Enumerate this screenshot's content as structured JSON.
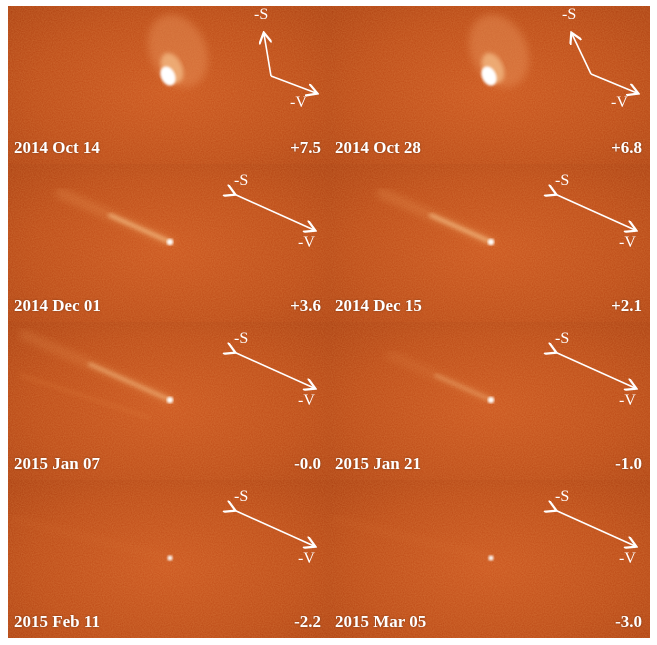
{
  "figure": {
    "panels": [
      {
        "date": "2014 Oct 14",
        "phase": "+7.5",
        "style": "nucleus-early",
        "axis_labels": {
          "s": "-S",
          "v": "-V"
        }
      },
      {
        "date": "2014 Oct 28",
        "phase": "+6.8",
        "style": "nucleus-early",
        "axis_labels": {
          "s": "-S",
          "v": "-V"
        }
      },
      {
        "date": "2014 Dec 01",
        "phase": "+3.6",
        "style": "tail-strong",
        "axis_labels": {
          "s": "-S",
          "v": "-V"
        }
      },
      {
        "date": "2014 Dec 15",
        "phase": "+2.1",
        "style": "tail-strong",
        "axis_labels": {
          "s": "-S",
          "v": "-V"
        }
      },
      {
        "date": "2015 Jan 07",
        "phase": "-0.0",
        "style": "tail-medium",
        "axis_labels": {
          "s": "-S",
          "v": "-V"
        }
      },
      {
        "date": "2015 Jan 21",
        "phase": "-1.0",
        "style": "tail-weak",
        "axis_labels": {
          "s": "-S",
          "v": "-V"
        }
      },
      {
        "date": "2015 Feb 11",
        "phase": "-2.2",
        "style": "point-faint",
        "axis_labels": {
          "s": "-S",
          "v": "-V"
        }
      },
      {
        "date": "2015 Mar 05",
        "phase": "-3.0",
        "style": "point-faint",
        "axis_labels": {
          "s": "-S",
          "v": "-V"
        }
      }
    ],
    "colors": {
      "background": "#b94512",
      "foreground": "#ffffff",
      "glow": "#ffd9a0"
    }
  }
}
